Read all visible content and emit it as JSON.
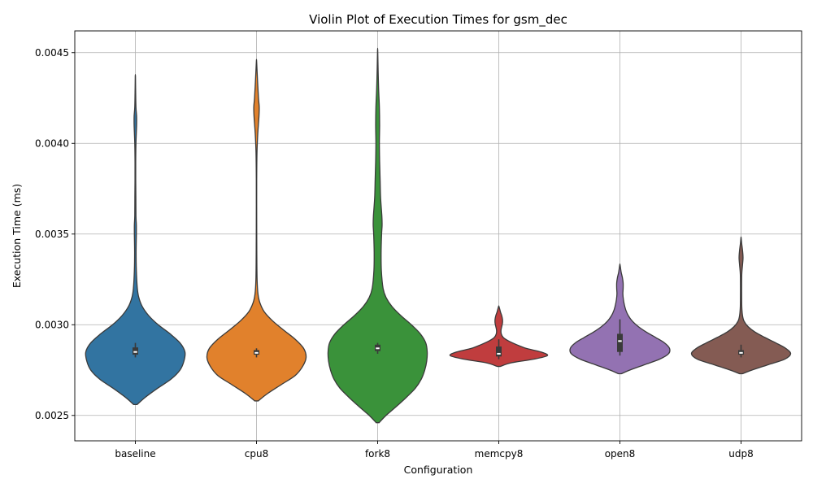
{
  "chart_data": {
    "type": "violin",
    "title": "Violin Plot of Execution Times for gsm_dec",
    "xlabel": "Configuration",
    "ylabel": "Execution Time (ms)",
    "ylim": [
      0.00236,
      0.00462
    ],
    "yticks": [
      "0.0025",
      "0.0030",
      "0.0035",
      "0.0040",
      "0.0045"
    ],
    "grid": true,
    "categories": [
      "baseline",
      "cpu8",
      "fork8",
      "memcpy8",
      "open8",
      "udp8"
    ],
    "colors": [
      "#3274a1",
      "#e1812c",
      "#3a923a",
      "#c03d3e",
      "#9372b2",
      "#845b53"
    ],
    "series": [
      {
        "name": "baseline",
        "min": 0.00256,
        "max": 0.00437,
        "q1": 0.002835,
        "median": 0.00285,
        "q3": 0.002875,
        "whisker_low": 0.00282,
        "whisker_high": 0.0029,
        "density": [
          [
            0.00256,
            0.035
          ],
          [
            0.0026,
            0.2
          ],
          [
            0.00265,
            0.45
          ],
          [
            0.0027,
            0.72
          ],
          [
            0.00275,
            0.9
          ],
          [
            0.0028,
            0.98
          ],
          [
            0.00285,
            1.0
          ],
          [
            0.0029,
            0.9
          ],
          [
            0.00295,
            0.7
          ],
          [
            0.003,
            0.46
          ],
          [
            0.00305,
            0.27
          ],
          [
            0.0031,
            0.14
          ],
          [
            0.00315,
            0.07
          ],
          [
            0.0032,
            0.04
          ],
          [
            0.0033,
            0.02
          ],
          [
            0.0034,
            0.015
          ],
          [
            0.0035,
            0.02
          ],
          [
            0.00355,
            0.02
          ],
          [
            0.0036,
            0.012
          ],
          [
            0.0037,
            0.01
          ],
          [
            0.0038,
            0.007
          ],
          [
            0.0039,
            0.007
          ],
          [
            0.004,
            0.012
          ],
          [
            0.0041,
            0.025
          ],
          [
            0.00415,
            0.025
          ],
          [
            0.0042,
            0.012
          ],
          [
            0.0043,
            0.005
          ],
          [
            0.00437,
            0.002
          ]
        ]
      },
      {
        "name": "cpu8",
        "min": 0.00258,
        "max": 0.00445,
        "q1": 0.002835,
        "median": 0.002845,
        "q3": 0.00286,
        "whisker_low": 0.00282,
        "whisker_high": 0.00287,
        "density": [
          [
            0.00258,
            0.035
          ],
          [
            0.00262,
            0.22
          ],
          [
            0.00267,
            0.5
          ],
          [
            0.00272,
            0.78
          ],
          [
            0.00277,
            0.93
          ],
          [
            0.00282,
            1.0
          ],
          [
            0.00287,
            0.95
          ],
          [
            0.00292,
            0.78
          ],
          [
            0.00297,
            0.55
          ],
          [
            0.00302,
            0.33
          ],
          [
            0.00307,
            0.16
          ],
          [
            0.00312,
            0.07
          ],
          [
            0.00317,
            0.03
          ],
          [
            0.00325,
            0.012
          ],
          [
            0.0034,
            0.006
          ],
          [
            0.0036,
            0.004
          ],
          [
            0.0038,
            0.004
          ],
          [
            0.00395,
            0.01
          ],
          [
            0.00405,
            0.025
          ],
          [
            0.00415,
            0.05
          ],
          [
            0.0042,
            0.055
          ],
          [
            0.00425,
            0.04
          ],
          [
            0.00435,
            0.02
          ],
          [
            0.00445,
            0.003
          ]
        ]
      },
      {
        "name": "fork8",
        "min": 0.00246,
        "max": 0.00451,
        "q1": 0.002855,
        "median": 0.00287,
        "q3": 0.00289,
        "whisker_low": 0.00284,
        "whisker_high": 0.0029,
        "density": [
          [
            0.00246,
            0.03
          ],
          [
            0.0025,
            0.17
          ],
          [
            0.00255,
            0.38
          ],
          [
            0.0026,
            0.58
          ],
          [
            0.00265,
            0.76
          ],
          [
            0.0027,
            0.88
          ],
          [
            0.00275,
            0.95
          ],
          [
            0.0028,
            0.99
          ],
          [
            0.00285,
            1.0
          ],
          [
            0.0029,
            0.97
          ],
          [
            0.00295,
            0.86
          ],
          [
            0.003,
            0.68
          ],
          [
            0.00305,
            0.47
          ],
          [
            0.0031,
            0.29
          ],
          [
            0.00315,
            0.17
          ],
          [
            0.0032,
            0.11
          ],
          [
            0.0033,
            0.075
          ],
          [
            0.0034,
            0.07
          ],
          [
            0.0035,
            0.08
          ],
          [
            0.00355,
            0.09
          ],
          [
            0.0036,
            0.085
          ],
          [
            0.0037,
            0.06
          ],
          [
            0.0038,
            0.05
          ],
          [
            0.0039,
            0.04
          ],
          [
            0.004,
            0.035
          ],
          [
            0.0041,
            0.04
          ],
          [
            0.0042,
            0.035
          ],
          [
            0.0043,
            0.02
          ],
          [
            0.0044,
            0.01
          ],
          [
            0.00451,
            0.002
          ]
        ]
      },
      {
        "name": "memcpy8",
        "min": 0.00277,
        "max": 0.0031,
        "q1": 0.002825,
        "median": 0.00284,
        "q3": 0.00288,
        "whisker_low": 0.00281,
        "whisker_high": 0.00292,
        "density": [
          [
            0.00277,
            0.03
          ],
          [
            0.00279,
            0.25
          ],
          [
            0.00281,
            0.7
          ],
          [
            0.00283,
            0.98
          ],
          [
            0.00285,
            0.85
          ],
          [
            0.00287,
            0.55
          ],
          [
            0.00289,
            0.36
          ],
          [
            0.00291,
            0.2
          ],
          [
            0.00293,
            0.09
          ],
          [
            0.00295,
            0.05
          ],
          [
            0.00297,
            0.045
          ],
          [
            0.00299,
            0.06
          ],
          [
            0.00301,
            0.075
          ],
          [
            0.00303,
            0.075
          ],
          [
            0.00305,
            0.06
          ],
          [
            0.00307,
            0.035
          ],
          [
            0.0031,
            0.005
          ]
        ]
      },
      {
        "name": "open8",
        "min": 0.00273,
        "max": 0.00333,
        "q1": 0.00285,
        "median": 0.00291,
        "q3": 0.00295,
        "whisker_low": 0.00283,
        "whisker_high": 0.00303,
        "density": [
          [
            0.00273,
            0.03
          ],
          [
            0.00275,
            0.2
          ],
          [
            0.00278,
            0.5
          ],
          [
            0.00281,
            0.8
          ],
          [
            0.00284,
            0.98
          ],
          [
            0.00287,
            1.0
          ],
          [
            0.0029,
            0.9
          ],
          [
            0.00293,
            0.72
          ],
          [
            0.00296,
            0.53
          ],
          [
            0.00299,
            0.37
          ],
          [
            0.00302,
            0.25
          ],
          [
            0.00305,
            0.17
          ],
          [
            0.00308,
            0.12
          ],
          [
            0.00311,
            0.09
          ],
          [
            0.00314,
            0.07
          ],
          [
            0.00317,
            0.06
          ],
          [
            0.0032,
            0.065
          ],
          [
            0.00323,
            0.065
          ],
          [
            0.00326,
            0.05
          ],
          [
            0.00329,
            0.025
          ],
          [
            0.00333,
            0.003
          ]
        ]
      },
      {
        "name": "udp8",
        "min": 0.00273,
        "max": 0.00348,
        "q1": 0.002835,
        "median": 0.002845,
        "q3": 0.00286,
        "whisker_low": 0.00282,
        "whisker_high": 0.00289,
        "density": [
          [
            0.00273,
            0.03
          ],
          [
            0.00275,
            0.22
          ],
          [
            0.00278,
            0.55
          ],
          [
            0.00281,
            0.88
          ],
          [
            0.00284,
            1.0
          ],
          [
            0.00287,
            0.9
          ],
          [
            0.0029,
            0.7
          ],
          [
            0.00293,
            0.48
          ],
          [
            0.00296,
            0.28
          ],
          [
            0.00299,
            0.14
          ],
          [
            0.00302,
            0.06
          ],
          [
            0.00305,
            0.03
          ],
          [
            0.0031,
            0.015
          ],
          [
            0.0032,
            0.012
          ],
          [
            0.00328,
            0.015
          ],
          [
            0.00333,
            0.03
          ],
          [
            0.00337,
            0.04
          ],
          [
            0.00341,
            0.03
          ],
          [
            0.00345,
            0.012
          ],
          [
            0.00348,
            0.002
          ]
        ]
      }
    ]
  }
}
